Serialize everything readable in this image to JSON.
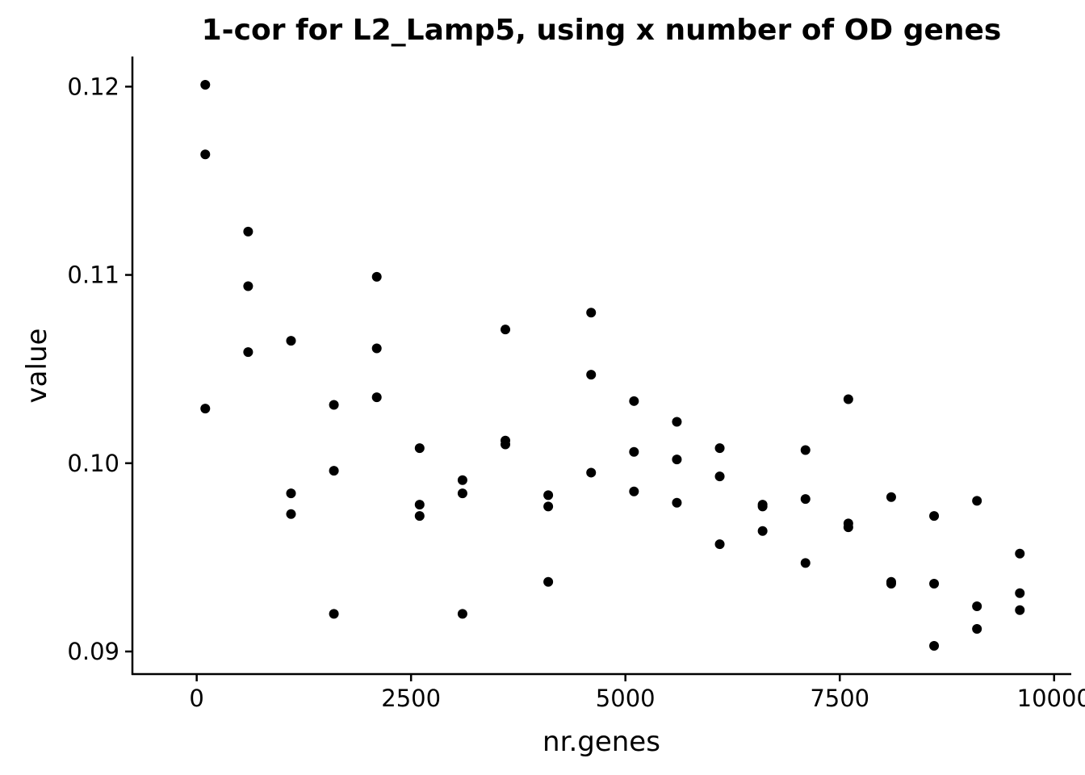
{
  "chart_data": {
    "type": "scatter",
    "title": "1-cor for L2_Lamp5, using x number of OD genes",
    "xlabel": "nr.genes",
    "ylabel": "value",
    "xlim": [
      -750,
      10200
    ],
    "ylim": [
      0.0888,
      0.1216
    ],
    "xticks": [
      0,
      2500,
      5000,
      7500,
      10000
    ],
    "xtick_labels": [
      "0",
      "2500",
      "5000",
      "7500",
      "10000"
    ],
    "yticks": [
      0.09,
      0.1,
      0.11,
      0.12
    ],
    "ytick_labels": [
      "0.09",
      "0.10",
      "0.11",
      "0.12"
    ],
    "grid": false,
    "legend": "none",
    "color": "#000000",
    "points": [
      {
        "x": 100,
        "y": 0.1201
      },
      {
        "x": 100,
        "y": 0.1164
      },
      {
        "x": 100,
        "y": 0.1029
      },
      {
        "x": 600,
        "y": 0.1123
      },
      {
        "x": 600,
        "y": 0.1094
      },
      {
        "x": 600,
        "y": 0.1059
      },
      {
        "x": 1100,
        "y": 0.1065
      },
      {
        "x": 1100,
        "y": 0.0984
      },
      {
        "x": 1100,
        "y": 0.0973
      },
      {
        "x": 1600,
        "y": 0.1031
      },
      {
        "x": 1600,
        "y": 0.0996
      },
      {
        "x": 1600,
        "y": 0.092
      },
      {
        "x": 2100,
        "y": 0.1099
      },
      {
        "x": 2100,
        "y": 0.1061
      },
      {
        "x": 2100,
        "y": 0.1035
      },
      {
        "x": 2600,
        "y": 0.1008
      },
      {
        "x": 2600,
        "y": 0.0978
      },
      {
        "x": 2600,
        "y": 0.0972
      },
      {
        "x": 3100,
        "y": 0.0991
      },
      {
        "x": 3100,
        "y": 0.0984
      },
      {
        "x": 3100,
        "y": 0.092
      },
      {
        "x": 3600,
        "y": 0.1071
      },
      {
        "x": 3600,
        "y": 0.1012
      },
      {
        "x": 3600,
        "y": 0.101
      },
      {
        "x": 4100,
        "y": 0.0983
      },
      {
        "x": 4100,
        "y": 0.0977
      },
      {
        "x": 4100,
        "y": 0.0937
      },
      {
        "x": 4600,
        "y": 0.108
      },
      {
        "x": 4600,
        "y": 0.1047
      },
      {
        "x": 4600,
        "y": 0.0995
      },
      {
        "x": 5100,
        "y": 0.1033
      },
      {
        "x": 5100,
        "y": 0.1006
      },
      {
        "x": 5100,
        "y": 0.0985
      },
      {
        "x": 5600,
        "y": 0.1022
      },
      {
        "x": 5600,
        "y": 0.1002
      },
      {
        "x": 5600,
        "y": 0.0979
      },
      {
        "x": 6100,
        "y": 0.1008
      },
      {
        "x": 6100,
        "y": 0.0993
      },
      {
        "x": 6100,
        "y": 0.0957
      },
      {
        "x": 6600,
        "y": 0.0978
      },
      {
        "x": 6600,
        "y": 0.0977
      },
      {
        "x": 6600,
        "y": 0.0964
      },
      {
        "x": 7100,
        "y": 0.1007
      },
      {
        "x": 7100,
        "y": 0.0981
      },
      {
        "x": 7100,
        "y": 0.0947
      },
      {
        "x": 7600,
        "y": 0.1034
      },
      {
        "x": 7600,
        "y": 0.0968
      },
      {
        "x": 7600,
        "y": 0.0966
      },
      {
        "x": 8100,
        "y": 0.0982
      },
      {
        "x": 8100,
        "y": 0.0937
      },
      {
        "x": 8100,
        "y": 0.0936
      },
      {
        "x": 8600,
        "y": 0.0972
      },
      {
        "x": 8600,
        "y": 0.0936
      },
      {
        "x": 8600,
        "y": 0.0903
      },
      {
        "x": 9100,
        "y": 0.098
      },
      {
        "x": 9100,
        "y": 0.0924
      },
      {
        "x": 9100,
        "y": 0.0912
      },
      {
        "x": 9600,
        "y": 0.0952
      },
      {
        "x": 9600,
        "y": 0.0931
      },
      {
        "x": 9600,
        "y": 0.0922
      }
    ]
  }
}
